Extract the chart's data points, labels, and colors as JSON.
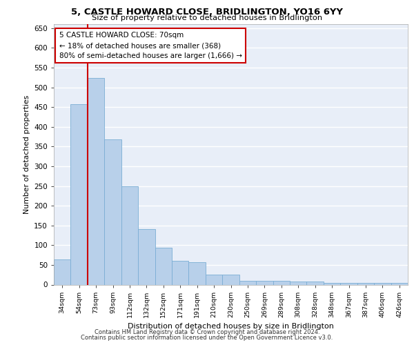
{
  "title": "5, CASTLE HOWARD CLOSE, BRIDLINGTON, YO16 6YY",
  "subtitle": "Size of property relative to detached houses in Bridlington",
  "xlabel": "Distribution of detached houses by size in Bridlington",
  "ylabel": "Number of detached properties",
  "bar_color": "#b8d0ea",
  "bar_edge_color": "#7aadd4",
  "background_color": "#e8eef8",
  "grid_color": "#ffffff",
  "categories": [
    "34sqm",
    "54sqm",
    "73sqm",
    "93sqm",
    "112sqm",
    "132sqm",
    "152sqm",
    "171sqm",
    "191sqm",
    "210sqm",
    "230sqm",
    "250sqm",
    "269sqm",
    "289sqm",
    "308sqm",
    "328sqm",
    "348sqm",
    "367sqm",
    "387sqm",
    "406sqm",
    "426sqm"
  ],
  "values": [
    63,
    457,
    524,
    368,
    250,
    140,
    93,
    60,
    57,
    25,
    25,
    10,
    10,
    10,
    8,
    7,
    5,
    5,
    5,
    5,
    5
  ],
  "ylim": [
    0,
    660
  ],
  "yticks": [
    0,
    50,
    100,
    150,
    200,
    250,
    300,
    350,
    400,
    450,
    500,
    550,
    600,
    650
  ],
  "property_line_label": "5 CASTLE HOWARD CLOSE: 70sqm",
  "annotation_line1": "← 18% of detached houses are smaller (368)",
  "annotation_line2": "80% of semi-detached houses are larger (1,666) →",
  "footer_line1": "Contains HM Land Registry data © Crown copyright and database right 2024.",
  "footer_line2": "Contains public sector information licensed under the Open Government Licence v3.0.",
  "red_line_color": "#cc0000",
  "annotation_box_color": "#ffffff",
  "annotation_box_edge_color": "#cc0000"
}
